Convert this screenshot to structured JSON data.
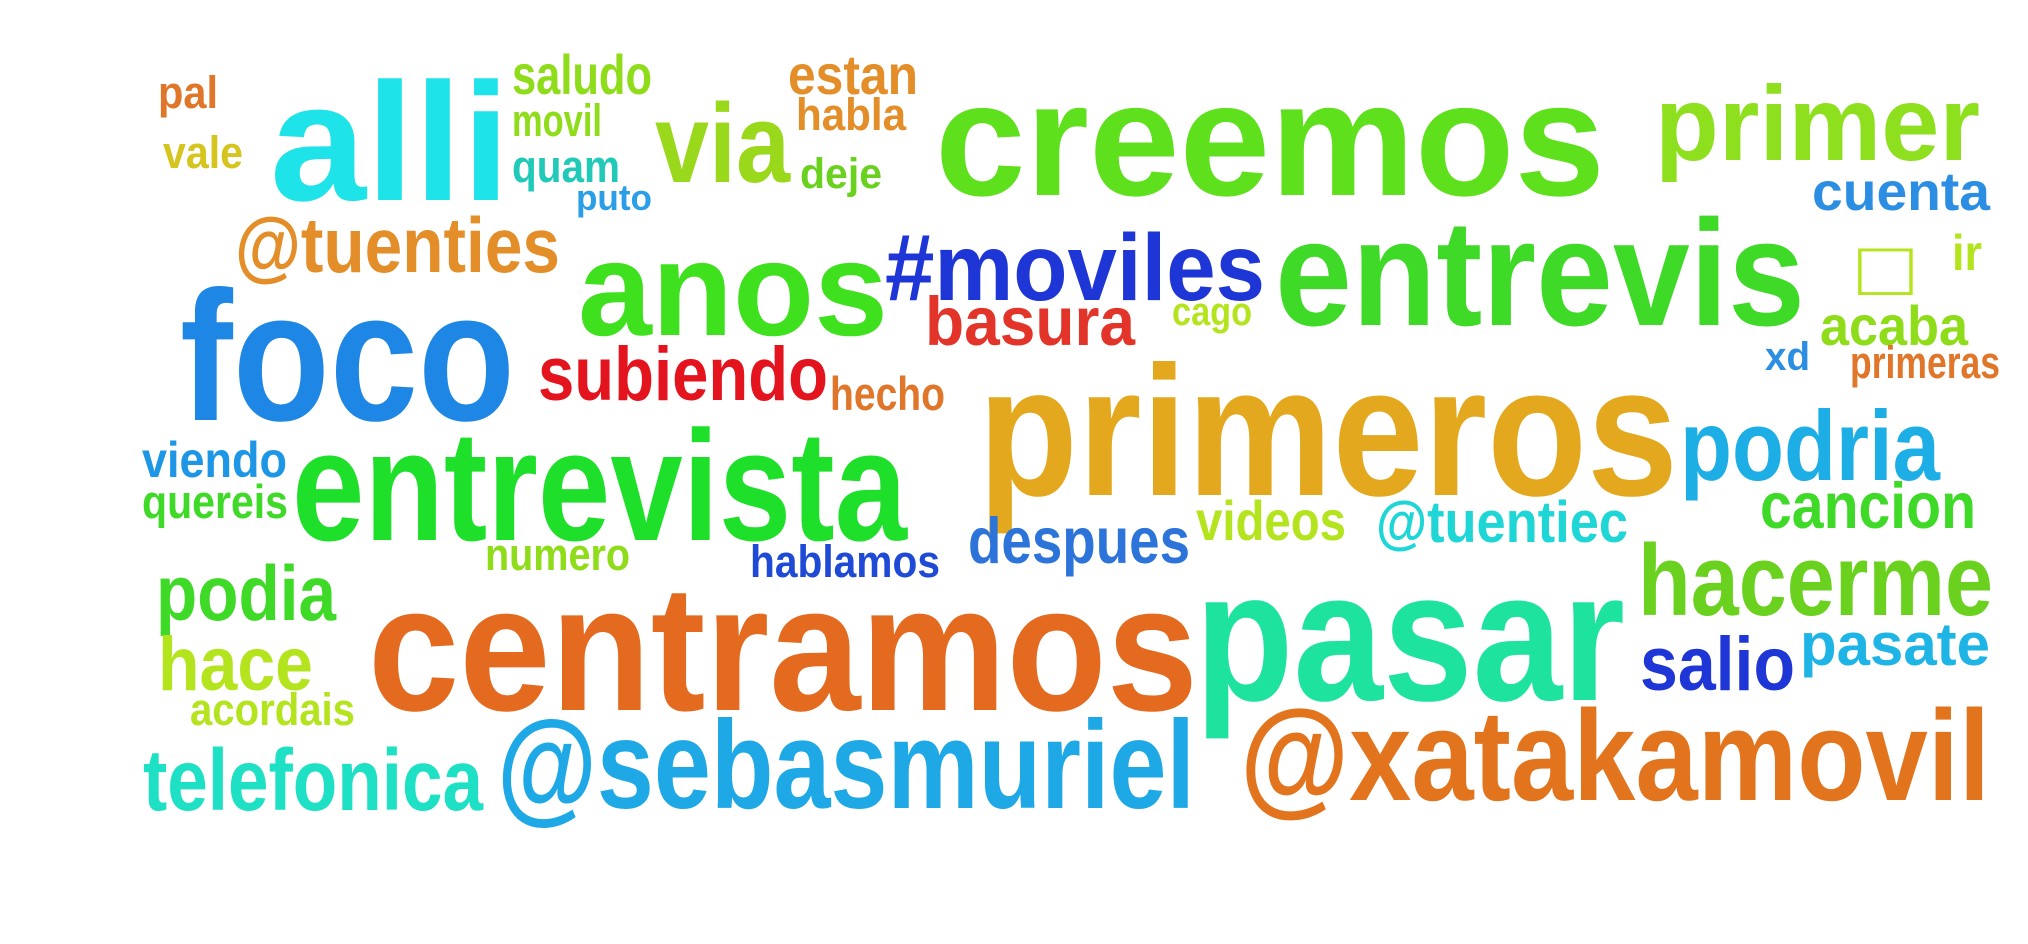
{
  "words": [
    {
      "text": "alli",
      "color": "#1ee3e8"
    },
    {
      "text": "pal",
      "color": "#e0762a"
    },
    {
      "text": "vale",
      "color": "#d6c41f"
    },
    {
      "text": "saludo",
      "color": "#8fdc1a"
    },
    {
      "text": "movil",
      "color": "#8fdc1a"
    },
    {
      "text": "quam",
      "color": "#20c9b8"
    },
    {
      "text": "puto",
      "color": "#2a9ee6"
    },
    {
      "text": "estan",
      "color": "#e38e28"
    },
    {
      "text": "habla",
      "color": "#e38e28"
    },
    {
      "text": "via",
      "color": "#9ad81c"
    },
    {
      "text": "deje",
      "color": "#6ad11e"
    },
    {
      "text": "creemos",
      "color": "#5fe01c"
    },
    {
      "text": "primer",
      "color": "#8ee01f"
    },
    {
      "text": "cuenta",
      "color": "#2c8ee3"
    },
    {
      "text": "@tuenties",
      "color": "#e38e28"
    },
    {
      "text": "anos",
      "color": "#3fe01e"
    },
    {
      "text": "#moviles",
      "color": "#1e36d6"
    },
    {
      "text": "entrevis",
      "color": "#3fd928"
    },
    {
      "text": "□",
      "color": "#b4e41e"
    },
    {
      "text": "ir",
      "color": "#b4e41e"
    },
    {
      "text": "foco",
      "color": "#1e86e4"
    },
    {
      "text": "basura",
      "color": "#e3342a"
    },
    {
      "text": "cago",
      "color": "#b4e41e"
    },
    {
      "text": "acaba",
      "color": "#8fdc1a"
    },
    {
      "text": "xd",
      "color": "#2c8ee3"
    },
    {
      "text": "primeras",
      "color": "#e0762a"
    },
    {
      "text": "subiendo",
      "color": "#e3141e"
    },
    {
      "text": "hecho",
      "color": "#e0762a"
    },
    {
      "text": "primeros",
      "color": "#e3a81e"
    },
    {
      "text": "podria",
      "color": "#1eaee6"
    },
    {
      "text": "viendo",
      "color": "#1e96e6"
    },
    {
      "text": "entrevista",
      "color": "#1ee02a"
    },
    {
      "text": "quereis",
      "color": "#3fd928"
    },
    {
      "text": "cancion",
      "color": "#3fd928"
    },
    {
      "text": "videos",
      "color": "#b4e41e"
    },
    {
      "text": "@tuentiec",
      "color": "#1ed6d6"
    },
    {
      "text": "despues",
      "color": "#2c74d9"
    },
    {
      "text": "numero",
      "color": "#8fdc1a"
    },
    {
      "text": "hablamos",
      "color": "#1e4ad6"
    },
    {
      "text": "hacerme",
      "color": "#6ad11e"
    },
    {
      "text": "podia",
      "color": "#3fd928"
    },
    {
      "text": "centramos",
      "color": "#e36a1e"
    },
    {
      "text": "pasar",
      "color": "#1ee39e"
    },
    {
      "text": "hace",
      "color": "#b4e41e"
    },
    {
      "text": "salio",
      "color": "#1e36d6"
    },
    {
      "text": "pasate",
      "color": "#1eb4e6"
    },
    {
      "text": "acordais",
      "color": "#b4e41e"
    },
    {
      "text": "@xatakamovil",
      "color": "#e3741e"
    },
    {
      "text": "telefonica",
      "color": "#1ee0c4"
    },
    {
      "text": "@sebasmuriel",
      "color": "#1ea8e6"
    }
  ]
}
